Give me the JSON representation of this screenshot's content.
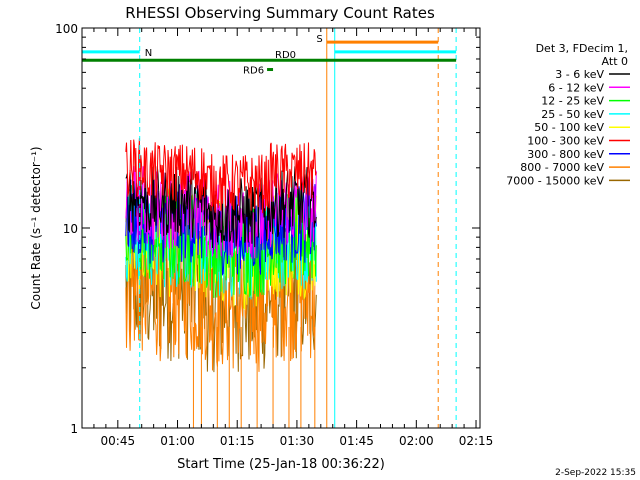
{
  "chart_data": {
    "type": "line",
    "title": "RHESSI Observing Summary Count Rates",
    "xlabel": "Start Time (25-Jan-18 00:36:22)",
    "ylabel": "Count Rate (s⁻¹ detector⁻¹)",
    "y_scale": "log",
    "ylim": [
      1,
      100
    ],
    "y_ticks": [
      {
        "value": 1,
        "label": "1"
      },
      {
        "value": 10,
        "label": "10"
      },
      {
        "value": 100,
        "label": "100"
      }
    ],
    "xlim_minutes": [
      0,
      100
    ],
    "x_ticks": [
      {
        "minute": 9,
        "label": "00:45"
      },
      {
        "minute": 24,
        "label": "01:00"
      },
      {
        "minute": 39,
        "label": "01:15"
      },
      {
        "minute": 54,
        "label": "01:30"
      },
      {
        "minute": 69,
        "label": "01:45"
      },
      {
        "minute": 84,
        "label": "02:00"
      },
      {
        "minute": 99,
        "label": "02:15"
      }
    ],
    "legend_title": [
      "Det 3, FDecim 1,",
      "Att 0"
    ],
    "legend_position": "right",
    "series": [
      {
        "name": "3 - 6 keV",
        "color": "#000000",
        "level": 13.5,
        "noise": 0.18
      },
      {
        "name": "6 - 12 keV",
        "color": "#ff00ff",
        "level": 12.5,
        "noise": 0.2
      },
      {
        "name": "12 - 25 keV",
        "color": "#00ff00",
        "level": 9.0,
        "noise": 0.25
      },
      {
        "name": "25 - 50 keV",
        "color": "#00ffff",
        "level": 8.8,
        "noise": 0.25
      },
      {
        "name": "50 - 100 keV",
        "color": "#ffff00",
        "level": 8.5,
        "noise": 0.28
      },
      {
        "name": "100 - 300 keV",
        "color": "#ff0000",
        "level": 19.0,
        "noise": 0.15
      },
      {
        "name": "300 - 800 keV",
        "color": "#0000ff",
        "level": 10.5,
        "noise": 0.2
      },
      {
        "name": "800 - 7000 keV",
        "color": "#ff8000",
        "level": 4.8,
        "noise": 0.35
      },
      {
        "name": "7000 - 15000 keV",
        "color": "#996600",
        "level": 4.8,
        "noise": 0.35
      }
    ],
    "data_interval_minutes": [
      11,
      59
    ],
    "flags": [
      {
        "label": "N",
        "color": "#00ffff",
        "x_start_min": 0,
        "x_end_min": 14.5,
        "y_value": 76
      },
      {
        "label": "S",
        "color": "#ff8000",
        "x_start_min": 61.5,
        "x_end_min": 89.5,
        "y_value": 85
      },
      {
        "label": "",
        "color": "#00ffff",
        "x_start_min": 63.5,
        "x_end_min": 94,
        "y_value": 76
      },
      {
        "label": "RD0",
        "color": "#008000",
        "x_start_min": 0,
        "x_end_min": 94,
        "y_value": 69
      },
      {
        "label": "RD6",
        "color": "#008000",
        "x_start_min": 46.5,
        "x_end_min": 48,
        "y_value": 62
      }
    ],
    "vertical_lines": [
      {
        "minute": 14.5,
        "color": "#00ffff",
        "style": "dashed"
      },
      {
        "minute": 61.5,
        "color": "#ff8000",
        "style": "solid"
      },
      {
        "minute": 63.5,
        "color": "#00ffff",
        "style": "solid"
      },
      {
        "minute": 89.5,
        "color": "#ff8000",
        "style": "dashed"
      },
      {
        "minute": 94,
        "color": "#00ffff",
        "style": "dashed"
      },
      {
        "minute": 0,
        "color": "#00ffff",
        "style": "solid"
      }
    ]
  },
  "footer_date": "2-Sep-2022 15:35"
}
